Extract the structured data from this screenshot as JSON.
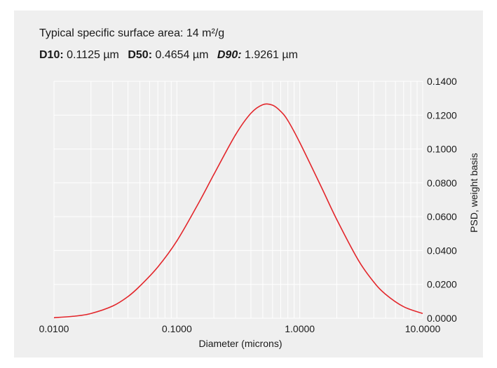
{
  "header": {
    "line1_text": "Typical specific surface area: 14 m²/g",
    "d10_label": "D10:",
    "d10_value": "0.1125 µm",
    "d50_label": "D50:",
    "d50_value": "0.4654 µm",
    "d90_label": "D90:",
    "d90_value": "1.9261 µm"
  },
  "chart_data": {
    "type": "line",
    "xlabel": "Diameter (microns)",
    "ylabel": "PSD, weight basis",
    "xscale": "log",
    "xlim": [
      0.01,
      10
    ],
    "ylim": [
      0,
      0.14
    ],
    "xticks": [
      "0.0100",
      "0.1000",
      "1.0000",
      "10.0000"
    ],
    "yticks": [
      "0.0000",
      "0.0200",
      "0.0400",
      "0.0600",
      "0.0800",
      "0.1000",
      "0.1200",
      "0.1400"
    ],
    "y_axis_side": "right",
    "grid": true,
    "line_color": "#e3262b",
    "x": [
      0.01,
      0.015,
      0.02,
      0.03,
      0.04,
      0.05,
      0.07,
      0.1,
      0.15,
      0.2,
      0.3,
      0.4,
      0.5,
      0.6,
      0.7,
      0.8,
      1.0,
      1.5,
      2.0,
      3.0,
      4.0,
      5.0,
      7.0,
      10.0
    ],
    "y": [
      0.0003,
      0.0013,
      0.0028,
      0.0072,
      0.0128,
      0.019,
      0.0303,
      0.0457,
      0.068,
      0.085,
      0.1084,
      0.1211,
      0.1262,
      0.1259,
      0.1222,
      0.1168,
      0.1038,
      0.0774,
      0.0583,
      0.0342,
      0.0214,
      0.0141,
      0.0068,
      0.0028
    ]
  }
}
